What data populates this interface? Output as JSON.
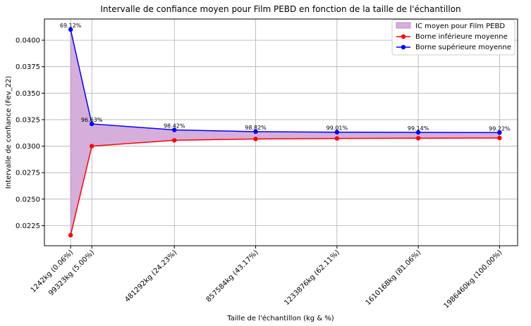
{
  "chart_data": {
    "type": "line",
    "title": "Intervalle de confiance moyen pour Film PEBD en fonction de la taille de l'échantillon",
    "xlabel": "Taille de l'échantillon (kg & %)",
    "ylabel": "Intervalle de confiance (Fev_22)",
    "ylim": [
      0.0206,
      0.042
    ],
    "xlim": [
      -0.12,
      2.07
    ],
    "yticks": [
      "0.0225",
      "0.0250",
      "0.0275",
      "0.0300",
      "0.0325",
      "0.0350",
      "0.0375",
      "0.0400"
    ],
    "ytick_values": [
      0.0225,
      0.025,
      0.0275,
      0.03,
      0.0325,
      0.035,
      0.0375,
      0.04
    ],
    "grid": true,
    "legend_position": "top-right",
    "x_positions": [
      0.00124,
      0.0993,
      0.4813,
      0.8576,
      1.2339,
      1.6102,
      1.9865
    ],
    "categories": [
      "1242kg (0.06%)",
      "99323kg (5.00%)",
      "481292kg (24.23%)",
      "857584kg (43.17%)",
      "1233876kg (62.11%)",
      "1610168kg (81.06%)",
      "1986460kg (100.00%)"
    ],
    "series": [
      {
        "name": "Borne inférieure moyenne",
        "color": "#ff0000",
        "values": [
          0.0216,
          0.03,
          0.03055,
          0.03068,
          0.03073,
          0.03075,
          0.03077
        ]
      },
      {
        "name": "Borne supérieure moyenne",
        "color": "#0000ff",
        "values": [
          0.041,
          0.0321,
          0.03153,
          0.03137,
          0.03132,
          0.0313,
          0.03128
        ]
      }
    ],
    "fill": {
      "name": "IC moyen pour Film PEBD",
      "color": "#d6aedc",
      "edge": "#c58fcc"
    },
    "annotations": [
      "69.12%",
      "96.63%",
      "98.42%",
      "98.82%",
      "99.01%",
      "99.14%",
      "99.22%"
    ]
  }
}
